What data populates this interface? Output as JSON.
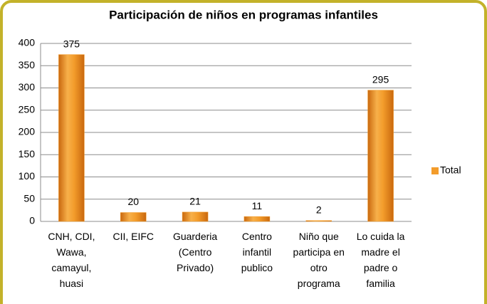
{
  "chart_data": {
    "type": "bar",
    "title": "Participación de niños en programas infantiles",
    "categories": [
      "CNH, CDI, Wawa, camayul, huasi",
      "CII, EIFC",
      "Guarderia (Centro Privado)",
      "Centro infantil publico",
      "Niño que participa en otro programa",
      "Lo cuida la madre el padre o familia"
    ],
    "series": [
      {
        "name": "Total",
        "color": "#f39c2b",
        "values": [
          375,
          20,
          21,
          11,
          2,
          295
        ]
      }
    ],
    "ylim": [
      0,
      400
    ],
    "yticks": [
      0,
      50,
      100,
      150,
      200,
      250,
      300,
      350,
      400
    ],
    "grid": true,
    "legend": "right"
  }
}
